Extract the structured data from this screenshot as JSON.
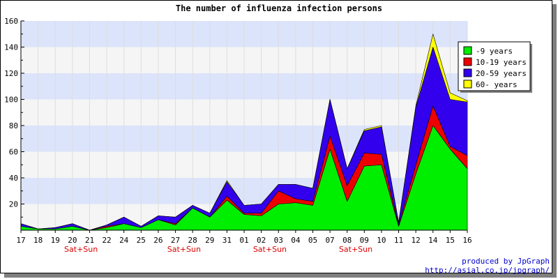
{
  "chart_data": {
    "type": "area",
    "stacked": true,
    "title": "The number of influenza infection persons",
    "xlabel": "",
    "ylabel": "",
    "ylim": [
      0,
      160
    ],
    "yticks": [
      20,
      40,
      60,
      80,
      100,
      120,
      140,
      160
    ],
    "categories": [
      "17",
      "18",
      "19",
      "20",
      "21",
      "22",
      "24",
      "25",
      "26",
      "27",
      "28",
      "29",
      "31",
      "01",
      "02",
      "03",
      "04",
      "05",
      "07",
      "08",
      "09",
      "10",
      "11",
      "12",
      "14",
      "15",
      "16"
    ],
    "weekend_labels": [
      {
        "index": 3,
        "text": "Sat+Sun"
      },
      {
        "index": 9,
        "text": "Sat+Sun"
      },
      {
        "index": 14,
        "text": "Sat+Sun"
      },
      {
        "index": 19,
        "text": "Sat+Sun"
      }
    ],
    "series": [
      {
        "name": "-9 years",
        "color": "#00ee00",
        "values": [
          3,
          1,
          1,
          3,
          0,
          2,
          5,
          2,
          8,
          4,
          17,
          10,
          23,
          12,
          11,
          20,
          21,
          19,
          62,
          22,
          49,
          50,
          3,
          43,
          80,
          62,
          47
        ]
      },
      {
        "name": "10-19 years",
        "color": "#ee0000",
        "values": [
          0,
          0,
          0,
          0,
          0,
          1,
          0,
          0,
          0,
          1,
          0,
          0,
          3,
          1,
          2,
          10,
          3,
          3,
          10,
          12,
          10,
          8,
          1,
          7,
          15,
          2,
          10
        ]
      },
      {
        "name": "20-59 years",
        "color": "#3300ee",
        "values": [
          2,
          0,
          1,
          2,
          0,
          1,
          5,
          1,
          3,
          5,
          2,
          3,
          11,
          6,
          7,
          5,
          11,
          10,
          28,
          13,
          17,
          21,
          2,
          44,
          45,
          36,
          41
        ]
      },
      {
        "name": "60- years",
        "color": "#ffff00",
        "values": [
          0,
          0,
          0,
          0,
          0,
          0,
          0,
          0,
          0,
          0,
          0,
          0,
          1,
          0,
          0,
          0,
          0,
          0,
          0,
          0,
          1,
          1,
          0,
          1,
          10,
          5,
          1
        ]
      }
    ],
    "grid": true,
    "legend_position": "top-right"
  },
  "credit": {
    "line1": "produced by JpGraph",
    "line2": "http://asial.co.jp/jpgraph/"
  }
}
